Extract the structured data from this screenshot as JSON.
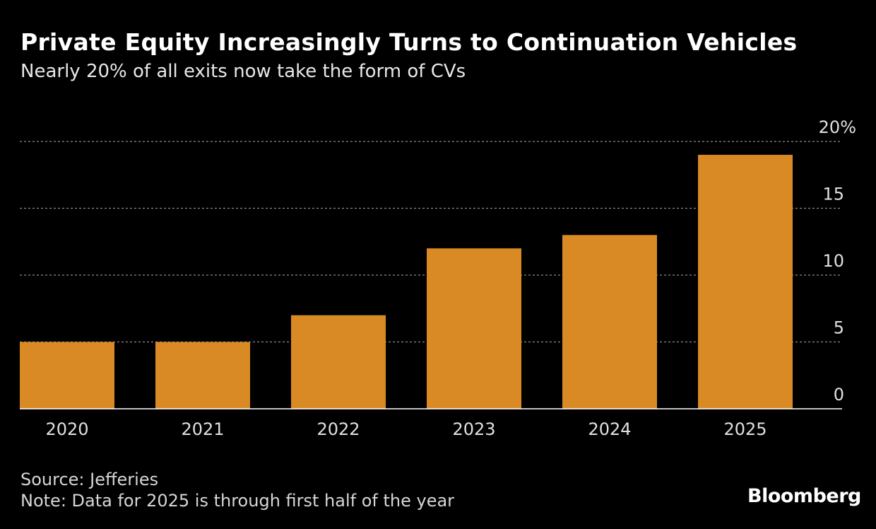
{
  "title": "Private Equity Increasingly Turns to Continuation Vehicles",
  "subtitle": "Nearly 20% of all exits now take the form of CVs",
  "source": "Source: Jefferies",
  "note": "Note: Data for 2025 is through first half of the year",
  "logo": "Bloomberg",
  "chart_data": {
    "type": "bar",
    "categories": [
      "2020",
      "2021",
      "2022",
      "2023",
      "2024",
      "2025"
    ],
    "values": [
      5,
      5,
      7,
      12,
      13,
      19
    ],
    "ylim": [
      0,
      20
    ],
    "yticks": [
      0,
      5,
      10,
      15,
      20
    ],
    "ytick_labels": [
      "0",
      "5",
      "10",
      "15",
      "20%"
    ],
    "grid": true,
    "y_axis_position": "right",
    "bar_color": "#DA8A24",
    "background": "#000000"
  }
}
